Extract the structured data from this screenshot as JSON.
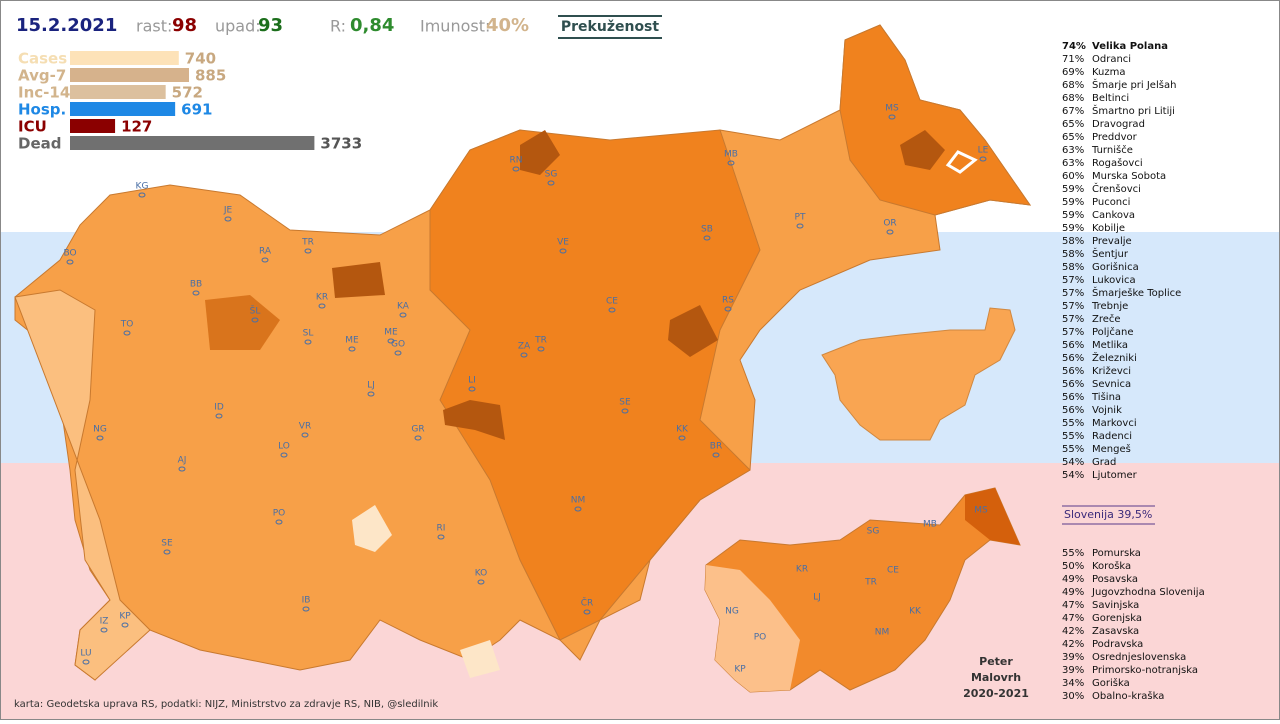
{
  "header": {
    "date": "15.2.2021",
    "growth_label": "rast:",
    "growth": 98,
    "decline_label": "upad:",
    "decline": 93,
    "r_label": "R:",
    "r_value": "0,84",
    "immunity_label": "Imunost:",
    "immunity": "40%",
    "button": "Prekuženost"
  },
  "stats": [
    {
      "label": "Cases",
      "value": 740
    },
    {
      "label": "Avg-7",
      "value": 885
    },
    {
      "label": "Inc-14",
      "value": 572
    },
    {
      "label": "Hosp.",
      "value": 691
    },
    {
      "label": "ICU",
      "value": 127
    },
    {
      "label": "Dead",
      "value": 3733
    }
  ],
  "municipalities": [
    [
      "74%",
      "Velika Polana"
    ],
    [
      "71%",
      "Odranci"
    ],
    [
      "69%",
      "Kuzma"
    ],
    [
      "68%",
      "Šmarje pri Jelšah"
    ],
    [
      "68%",
      "Beltinci"
    ],
    [
      "67%",
      "Šmartno pri Litiji"
    ],
    [
      "65%",
      "Dravograd"
    ],
    [
      "65%",
      "Preddvor"
    ],
    [
      "63%",
      "Turnišče"
    ],
    [
      "63%",
      "Rogašovci"
    ],
    [
      "60%",
      "Murska Sobota"
    ],
    [
      "59%",
      "Črenšovci"
    ],
    [
      "59%",
      "Puconci"
    ],
    [
      "59%",
      "Cankova"
    ],
    [
      "59%",
      "Kobilje"
    ],
    [
      "58%",
      "Prevalje"
    ],
    [
      "58%",
      "Šentjur"
    ],
    [
      "58%",
      "Gorišnica"
    ],
    [
      "57%",
      "Lukovica"
    ],
    [
      "57%",
      "Šmarješke Toplice"
    ],
    [
      "57%",
      "Trebnje"
    ],
    [
      "57%",
      "Zreče"
    ],
    [
      "57%",
      "Poljčane"
    ],
    [
      "56%",
      "Metlika"
    ],
    [
      "56%",
      "Železniki"
    ],
    [
      "56%",
      "Križevci"
    ],
    [
      "56%",
      "Sevnica"
    ],
    [
      "56%",
      "Tišina"
    ],
    [
      "56%",
      "Vojnik"
    ],
    [
      "55%",
      "Markovci"
    ],
    [
      "55%",
      "Radenci"
    ],
    [
      "55%",
      "Mengeš"
    ],
    [
      "54%",
      "Grad"
    ],
    [
      "54%",
      "Ljutomer"
    ]
  ],
  "national": "Slovenija 39,5%",
  "regions": [
    [
      "55%",
      "Pomurska"
    ],
    [
      "50%",
      "Koroška"
    ],
    [
      "49%",
      "Posavska"
    ],
    [
      "49%",
      "Jugovzhodna Slovenija"
    ],
    [
      "47%",
      "Savinjska"
    ],
    [
      "47%",
      "Gorenjska"
    ],
    [
      "42%",
      "Zasavska"
    ],
    [
      "42%",
      "Podravska"
    ],
    [
      "39%",
      "Osrednjeslovenska"
    ],
    [
      "39%",
      "Primorsko-notranjska"
    ],
    [
      "34%",
      "Goriška"
    ],
    [
      "30%",
      "Obalno-kraška"
    ]
  ],
  "map_labels": [
    "KG",
    "JE",
    "BO",
    "RA",
    "TR",
    "BB",
    "KR",
    "KA",
    "TO",
    "ŠL",
    "SL",
    "ME",
    "ME",
    "GO",
    "LJ",
    "ZA",
    "TR",
    "LI",
    "CE",
    "VE",
    "SB",
    "RS",
    "SE",
    "KK",
    "BR",
    "NM",
    "ČR",
    "KO",
    "RI",
    "GR",
    "VR",
    "LO",
    "ID",
    "NG",
    "AJ",
    "PO",
    "SE",
    "IB",
    "IZ",
    "KP",
    "LU",
    "RN",
    "SG",
    "MB",
    "PT",
    "OR",
    "MS",
    "LE"
  ],
  "inset_labels": [
    "SG",
    "MB",
    "MS",
    "KR",
    "CE",
    "TR",
    "LJ",
    "NG",
    "PO",
    "KK",
    "NM",
    "KP"
  ],
  "author": "Peter Malovrh",
  "years": "2020-2021",
  "footer": "karta: Geodetska uprava RS,  podatki: NIJZ, Ministrstvo za zdravje RS, NIB, @sledilnik"
}
